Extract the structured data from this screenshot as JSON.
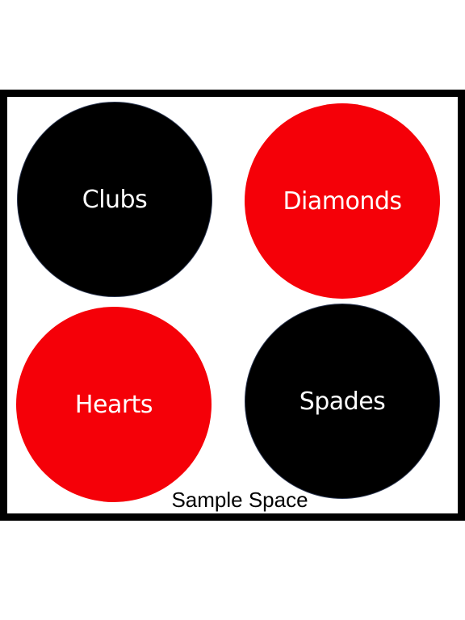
{
  "diagram": {
    "caption": "Sample Space",
    "suits": [
      {
        "label": "Clubs",
        "color": "#000000"
      },
      {
        "label": "Diamonds",
        "color": "#f50008"
      },
      {
        "label": "Hearts",
        "color": "#f50008"
      },
      {
        "label": "Spades",
        "color": "#000000"
      }
    ]
  }
}
